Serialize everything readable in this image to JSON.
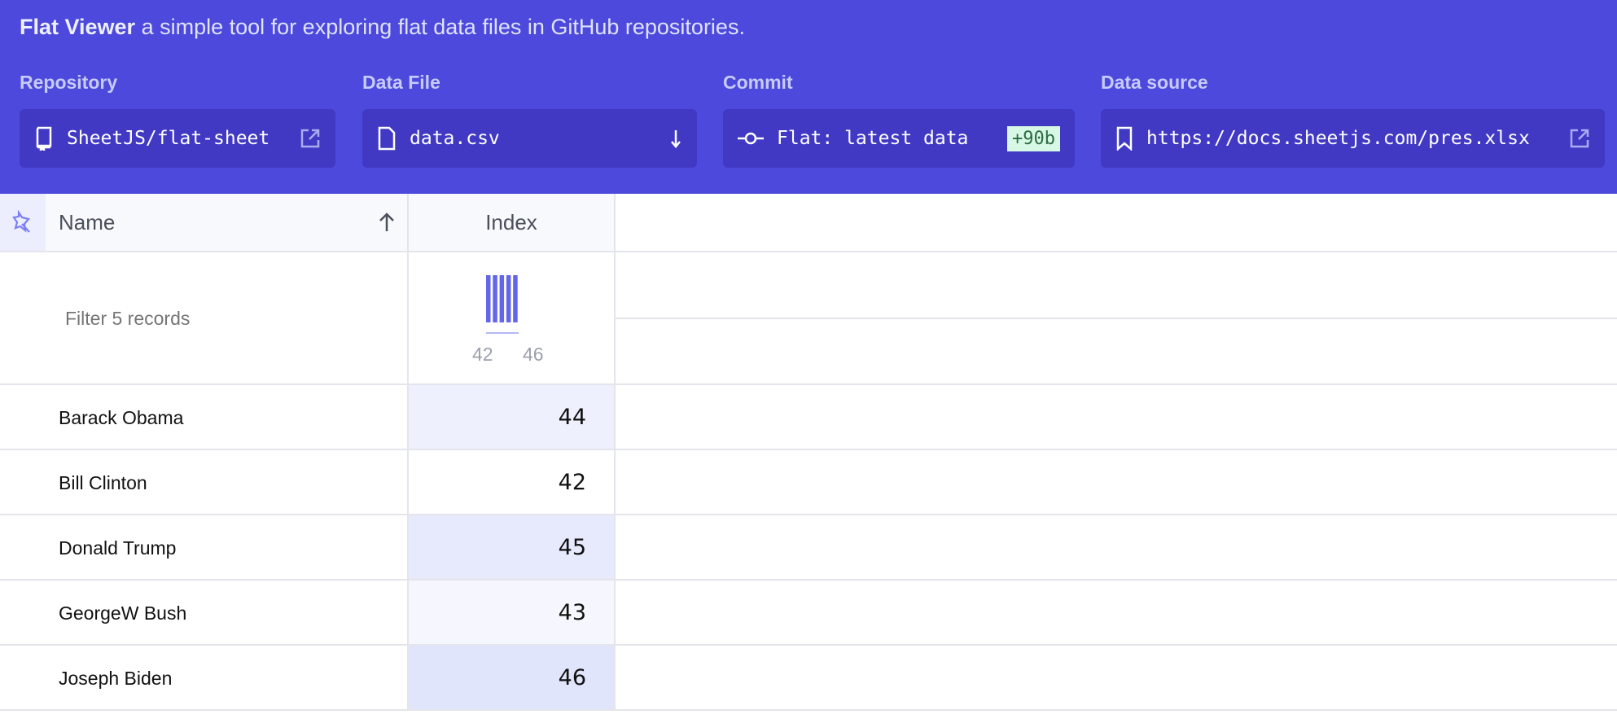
{
  "header": {
    "app_name": "Flat Viewer",
    "tagline": "a simple tool for exploring flat data files in GitHub repositories.",
    "repository": {
      "label": "Repository",
      "value": "SheetJS/flat-sheet",
      "icon": "repo-icon"
    },
    "data_file": {
      "label": "Data File",
      "value": "data.csv",
      "icon": "file-icon"
    },
    "commit": {
      "label": "Commit",
      "value": "Flat: latest data",
      "badge": "+90b",
      "icon": "commit-icon"
    },
    "data_source": {
      "label": "Data source",
      "value": "https://docs.sheetjs.com/pres.xlsx",
      "icon": "bookmark-icon"
    }
  },
  "table": {
    "columns": [
      {
        "label": "Name",
        "sort": "ascending"
      },
      {
        "label": "Index"
      }
    ],
    "filter_placeholder": "Filter 5 records",
    "histogram": {
      "min_label": "42",
      "max_label": "46",
      "counts": [
        1,
        1,
        1,
        1,
        1
      ],
      "color": "#6366e8"
    },
    "rows": [
      {
        "name": "Barack Obama",
        "index": "44"
      },
      {
        "name": "Bill Clinton",
        "index": "42"
      },
      {
        "name": "Donald Trump",
        "index": "45"
      },
      {
        "name": "GeorgeW Bush",
        "index": "43"
      },
      {
        "name": "Joseph Biden",
        "index": "46"
      }
    ]
  },
  "colors": {
    "header_bg": "#4c49dc",
    "box_bg": "#4139c4",
    "accent": "#6366e8"
  }
}
